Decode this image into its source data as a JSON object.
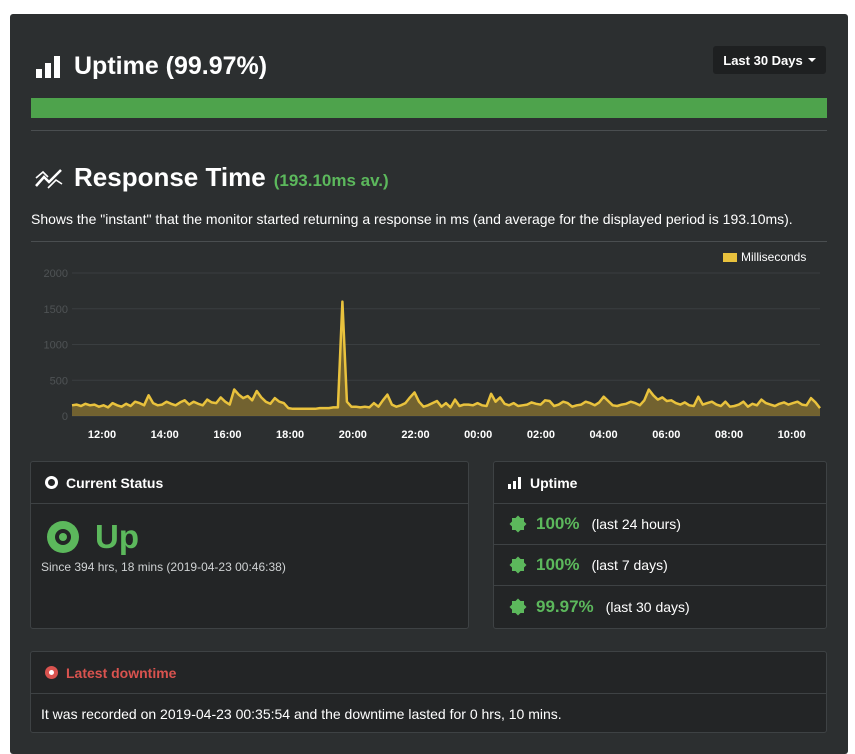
{
  "uptime": {
    "title": "Uptime (99.97%)",
    "range_button": "Last 30 Days",
    "bar_fraction": 0.9997,
    "bar_color": "#4ea34c"
  },
  "response_time": {
    "title": "Response Time",
    "average": "(193.10ms av.)",
    "description": "Shows the \"instant\" that the monitor started returning a response in ms (and average for the displayed period is 193.10ms)."
  },
  "chart_data": {
    "type": "area",
    "legend": [
      "Milliseconds"
    ],
    "legend_position": "top-right",
    "color": "#e9c23d",
    "y_ticks": [
      0,
      500,
      1000,
      1500,
      2000
    ],
    "ylim": [
      0,
      2000
    ],
    "x_ticks": [
      "12:00",
      "14:00",
      "16:00",
      "18:00",
      "20:00",
      "22:00",
      "00:00",
      "02:00",
      "04:00",
      "06:00",
      "08:00",
      "10:00"
    ],
    "grid": true,
    "series": [
      {
        "name": "Milliseconds",
        "values": [
          150,
          160,
          140,
          170,
          150,
          160,
          130,
          150,
          120,
          180,
          150,
          130,
          170,
          140,
          200,
          180,
          150,
          290,
          180,
          150,
          160,
          200,
          170,
          150,
          190,
          220,
          160,
          200,
          170,
          150,
          230,
          190,
          180,
          260,
          200,
          160,
          370,
          300,
          250,
          280,
          220,
          350,
          260,
          200,
          170,
          250,
          200,
          180,
          110,
          100,
          100,
          100,
          100,
          100,
          100,
          110,
          110,
          110,
          120,
          120,
          1600,
          200,
          130,
          130,
          120,
          130,
          120,
          180,
          130,
          220,
          300,
          160,
          130,
          150,
          180,
          260,
          330,
          200,
          130,
          150,
          180,
          210,
          130,
          180,
          120,
          230,
          140,
          160,
          160,
          150,
          180,
          150,
          140,
          310,
          200,
          260,
          170,
          150,
          180,
          140,
          150,
          160,
          190,
          170,
          160,
          220,
          210,
          140,
          160,
          200,
          180,
          130,
          150,
          160,
          200,
          180,
          150,
          190,
          270,
          210,
          150,
          140,
          160,
          170,
          200,
          180,
          150,
          220,
          370,
          290,
          230,
          260,
          210,
          220,
          180,
          160,
          190,
          150,
          140,
          270,
          160,
          180,
          200,
          160,
          140,
          200,
          130,
          140,
          160,
          200,
          130,
          170,
          150,
          230,
          180,
          160,
          140,
          170,
          190,
          160,
          180,
          200,
          160,
          150,
          250,
          190,
          110
        ]
      }
    ]
  },
  "current_status": {
    "title": "Current Status",
    "state": "Up",
    "since": "Since 394 hrs, 18 mins (2019-04-23 00:46:38)"
  },
  "uptime_panel": {
    "title": "Uptime",
    "rows": [
      {
        "percent": "100%",
        "period": "(last 24 hours)"
      },
      {
        "percent": "100%",
        "period": "(last 7 days)"
      },
      {
        "percent": "99.97%",
        "period": "(last 30 days)"
      }
    ]
  },
  "latest_downtime": {
    "title": "Latest downtime",
    "text": "It was recorded on 2019-04-23 00:35:54 and the downtime lasted for 0 hrs, 10 mins."
  }
}
